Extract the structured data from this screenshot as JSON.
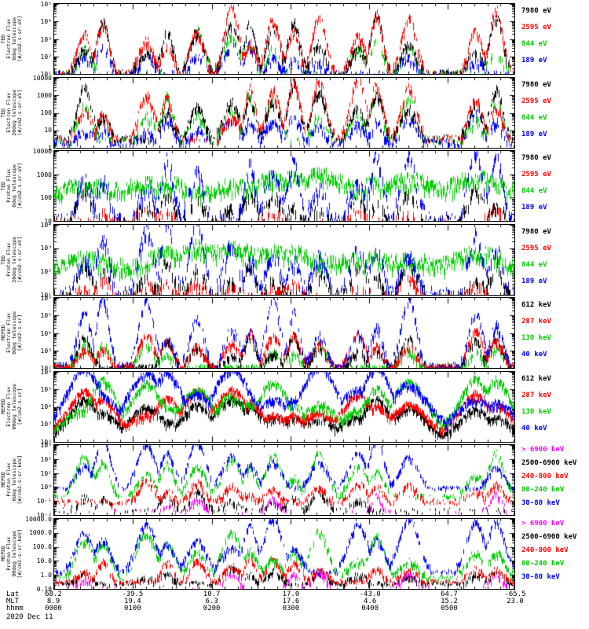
{
  "figure": {
    "background": "#ffffff",
    "date_label": "2020 Dec 11",
    "colors": {
      "black": "#000000",
      "red": "#ff0000",
      "green": "#00cc00",
      "blue": "#0000ff",
      "magenta": "#ff00ff"
    },
    "bottom_axis": {
      "row_labels": [
        "Lat",
        "MLT",
        "hhmm"
      ],
      "ticks": [
        {
          "frac": 0.0,
          "lat": "68.2",
          "mlt": "8.9",
          "hhmm": "0000"
        },
        {
          "frac": 0.1714,
          "lat": "-39.5",
          "mlt": "19.4",
          "hhmm": "0100"
        },
        {
          "frac": 0.3429,
          "lat": "10.7",
          "mlt": "6.3",
          "hhmm": "0200"
        },
        {
          "frac": 0.5143,
          "lat": "17.0",
          "mlt": "17.6",
          "hhmm": "0300"
        },
        {
          "frac": 0.6857,
          "lat": "-43.0",
          "mlt": "4.6",
          "hhmm": "0400"
        },
        {
          "frac": 0.8571,
          "lat": "64.7",
          "mlt": "15.2",
          "hhmm": "0500"
        },
        {
          "frac": 1.0,
          "lat": "-65.5",
          "mlt": "23.0",
          "hhmm": ""
        }
      ]
    },
    "bursts": [
      {
        "c": 0.065,
        "w": 0.015
      },
      {
        "c": 0.105,
        "w": 0.013
      },
      {
        "c": 0.2,
        "w": 0.016
      },
      {
        "c": 0.245,
        "w": 0.013
      },
      {
        "c": 0.31,
        "w": 0.015
      },
      {
        "c": 0.385,
        "w": 0.016
      },
      {
        "c": 0.425,
        "w": 0.012
      },
      {
        "c": 0.475,
        "w": 0.015
      },
      {
        "c": 0.52,
        "w": 0.013
      },
      {
        "c": 0.575,
        "w": 0.015
      },
      {
        "c": 0.66,
        "w": 0.016
      },
      {
        "c": 0.7,
        "w": 0.013
      },
      {
        "c": 0.77,
        "w": 0.016
      },
      {
        "c": 0.915,
        "w": 0.015
      },
      {
        "c": 0.96,
        "w": 0.014
      }
    ]
  },
  "chart_data": [
    {
      "type": "line",
      "y_scale": "log",
      "ylabel": "TED\nElectron Flux\n0deg telescope\n[#/cm2-s-sr-eV]",
      "ylim_log10": [
        1,
        5
      ],
      "yticks": [
        {
          "log": 5,
          "label": "10⁵"
        },
        {
          "log": 4,
          "label": "10⁴"
        },
        {
          "log": 3,
          "label": "10³"
        },
        {
          "log": 2,
          "label": "10²"
        },
        {
          "log": 1,
          "label": "10¹"
        }
      ],
      "energy_labels": [
        {
          "text": "7980 eV",
          "color": "black"
        },
        {
          "text": "2595 eV",
          "color": "red"
        },
        {
          "text": "844 eV",
          "color": "green"
        },
        {
          "text": "189 eV",
          "color": "blue"
        }
      ],
      "series": [
        {
          "label": "189 eV",
          "color": "blue",
          "base": 1.05,
          "amp": 1.35,
          "noise": 0.5,
          "gap": 0.35,
          "sparse": 0.5,
          "presence": 0.9,
          "wmul": 1
        },
        {
          "label": "844 eV",
          "color": "green",
          "base": 1.05,
          "amp": 1.9,
          "noise": 0.6,
          "gap": 0.5,
          "sparse": 0.22,
          "presence": 0.85,
          "wmul": 1
        },
        {
          "label": "7980 eV",
          "color": "black",
          "base": 1.1,
          "amp": 2.6,
          "noise": 0.5,
          "gap": 0.25,
          "sparse": 0.55,
          "presence": 0.95,
          "wmul": 1
        },
        {
          "label": "2595 eV",
          "color": "red",
          "base": 1.1,
          "amp": 2.95,
          "noise": 0.5,
          "gap": 0.22,
          "sparse": 0.3,
          "presence": 0.95,
          "wmul": 1
        }
      ]
    },
    {
      "type": "line",
      "y_scale": "log",
      "ylabel": "TED\nElectron Flux\n30deg telescope\n[#/cm2-s-sr-eV]",
      "ylim_log10": [
        0,
        4
      ],
      "yticks": [
        {
          "log": 4,
          "label": "10000"
        },
        {
          "log": 3,
          "label": "1000"
        },
        {
          "log": 2,
          "label": "100"
        },
        {
          "log": 1,
          "label": "10"
        },
        {
          "log": 0,
          "label": "1"
        }
      ],
      "energy_labels": [
        {
          "text": "7980 eV",
          "color": "black"
        },
        {
          "text": "2595 eV",
          "color": "red"
        },
        {
          "text": "844 eV",
          "color": "green"
        },
        {
          "text": "189 eV",
          "color": "blue"
        }
      ],
      "series": [
        {
          "label": "189 eV",
          "color": "blue",
          "base": 0.35,
          "amp": 1.3,
          "noise": 0.5,
          "gap": 0.35,
          "sparse": 0.5,
          "presence": 0.9,
          "wmul": 1
        },
        {
          "label": "844 eV",
          "color": "green",
          "base": 0.5,
          "amp": 2.0,
          "noise": 0.6,
          "gap": 0.45,
          "sparse": 0.25,
          "presence": 0.85,
          "wmul": 1
        },
        {
          "label": "7980 eV",
          "color": "black",
          "base": 0.6,
          "amp": 2.5,
          "noise": 0.5,
          "gap": 0.25,
          "sparse": 0.5,
          "presence": 0.95,
          "wmul": 1
        },
        {
          "label": "2595 eV",
          "color": "red",
          "base": 0.6,
          "amp": 2.8,
          "noise": 0.5,
          "gap": 0.22,
          "sparse": 0.3,
          "presence": 0.95,
          "wmul": 1
        }
      ]
    },
    {
      "type": "line",
      "y_scale": "log",
      "ylabel": "TED\nProton Flux\n0deg telescope\n[#/cm2-s-sr-eV]",
      "ylim_log10": [
        1,
        4
      ],
      "yticks": [
        {
          "log": 4,
          "label": "10000"
        },
        {
          "log": 3,
          "label": "1000"
        },
        {
          "log": 2,
          "label": "100"
        },
        {
          "log": 1,
          "label": "10"
        }
      ],
      "energy_labels": [
        {
          "text": "7980 eV",
          "color": "black"
        },
        {
          "text": "2595 eV",
          "color": "red"
        },
        {
          "text": "844 eV",
          "color": "green"
        },
        {
          "text": "189 eV",
          "color": "blue"
        }
      ],
      "series": [
        {
          "label": "7980 eV",
          "color": "black",
          "base": 1.1,
          "amp": 1.1,
          "noise": 0.45,
          "gap": 0.5,
          "sparse": 0.35,
          "presence": 0.8,
          "wmul": 1
        },
        {
          "label": "2595 eV",
          "color": "red",
          "base": 1.05,
          "amp": 0.6,
          "noise": 0.35,
          "gap": 0.6,
          "sparse": 0.12,
          "presence": 0.6,
          "wmul": 1
        },
        {
          "label": "844 eV",
          "color": "green",
          "base": 1.85,
          "amp": 1.0,
          "noise": 0.6,
          "gap": 0.12,
          "sparse": 0.45,
          "presence": 1.0,
          "wmul": 4
        },
        {
          "label": "189 eV",
          "color": "blue",
          "base": 1.2,
          "amp": 2.4,
          "noise": 0.6,
          "gap": 0.35,
          "sparse": 0.3,
          "presence": 0.9,
          "wmul": 1
        }
      ]
    },
    {
      "type": "line",
      "y_scale": "log",
      "ylabel": "TED\nProton Flux\n30deg telescope\n[#/cm2-s-sr-eV]",
      "ylim_log10": [
        1,
        4
      ],
      "yticks": [
        {
          "log": 4,
          "label": "10⁴"
        },
        {
          "log": 3,
          "label": "10³"
        },
        {
          "log": 2,
          "label": "10²"
        },
        {
          "log": 1,
          "label": "10¹"
        }
      ],
      "energy_labels": [
        {
          "text": "7980 eV",
          "color": "black"
        },
        {
          "text": "2595 eV",
          "color": "red"
        },
        {
          "text": "844 eV",
          "color": "green"
        },
        {
          "text": "189 eV",
          "color": "blue"
        }
      ],
      "series": [
        {
          "label": "7980 eV",
          "color": "black",
          "base": 1.1,
          "amp": 1.1,
          "noise": 0.45,
          "gap": 0.5,
          "sparse": 0.35,
          "presence": 0.8,
          "wmul": 1
        },
        {
          "label": "2595 eV",
          "color": "red",
          "base": 1.05,
          "amp": 0.6,
          "noise": 0.35,
          "gap": 0.6,
          "sparse": 0.12,
          "presence": 0.6,
          "wmul": 1
        },
        {
          "label": "844 eV",
          "color": "green",
          "base": 1.85,
          "amp": 1.0,
          "noise": 0.6,
          "gap": 0.12,
          "sparse": 0.45,
          "presence": 1.0,
          "wmul": 4
        },
        {
          "label": "189 eV",
          "color": "blue",
          "base": 1.2,
          "amp": 2.4,
          "noise": 0.6,
          "gap": 0.35,
          "sparse": 0.3,
          "presence": 0.9,
          "wmul": 1
        }
      ]
    },
    {
      "type": "line",
      "y_scale": "log",
      "ylabel": "MEPED\nElectron Flux\n0deg telescope\n[#/cm2-s-sr]",
      "ylim_log10": [
        2,
        6
      ],
      "yticks": [
        {
          "log": 6,
          "label": "10⁶"
        },
        {
          "log": 5,
          "label": "10⁵"
        },
        {
          "log": 4,
          "label": "10⁴"
        },
        {
          "log": 3,
          "label": "10³"
        },
        {
          "log": 2,
          "label": "10²"
        }
      ],
      "energy_labels": [
        {
          "text": "612 keV",
          "color": "black"
        },
        {
          "text": "287 keV",
          "color": "red"
        },
        {
          "text": "130 keV",
          "color": "green"
        },
        {
          "text": "40 keV",
          "color": "blue"
        }
      ],
      "series": [
        {
          "label": "130 keV",
          "color": "green",
          "base": 2.1,
          "amp": 1.3,
          "noise": 0.35,
          "gap": 0.4,
          "sparse": 0.7,
          "presence": 0.75,
          "wmul": 1
        },
        {
          "label": "612 keV",
          "color": "black",
          "base": 2.1,
          "amp": 1.6,
          "noise": 0.35,
          "gap": 0.3,
          "sparse": 0.85,
          "presence": 0.85,
          "wmul": 1
        },
        {
          "label": "287 keV",
          "color": "red",
          "base": 2.15,
          "amp": 1.7,
          "noise": 0.35,
          "gap": 0.3,
          "sparse": 0.85,
          "presence": 0.85,
          "wmul": 1
        },
        {
          "label": "40 keV",
          "color": "blue",
          "base": 2.2,
          "amp": 3.1,
          "noise": 0.5,
          "gap": 0.3,
          "sparse": 0.6,
          "presence": 0.9,
          "wmul": 1
        }
      ]
    },
    {
      "type": "line",
      "y_scale": "log",
      "ylabel": "MEPED\nElectron Flux\n90deg telescope\n[#/cm2-s-sr]",
      "ylim_log10": [
        2,
        6
      ],
      "yticks": [
        {
          "log": 6,
          "label": "10⁶"
        },
        {
          "log": 5,
          "label": "10⁵"
        },
        {
          "log": 4,
          "label": "10⁴"
        },
        {
          "log": 3,
          "label": "10³"
        },
        {
          "log": 2,
          "label": "10²"
        }
      ],
      "energy_labels": [
        {
          "text": "612 keV",
          "color": "black"
        },
        {
          "text": "287 keV",
          "color": "red"
        },
        {
          "text": "130 keV",
          "color": "green"
        },
        {
          "text": "40 keV",
          "color": "blue"
        }
      ],
      "series": [
        {
          "label": "612 keV",
          "color": "black",
          "base": 2.4,
          "amp": 1.7,
          "noise": 0.3,
          "gap": 0.08,
          "sparse": 0.9,
          "presence": 1,
          "wmul": 2.2
        },
        {
          "label": "287 keV",
          "color": "red",
          "base": 2.6,
          "amp": 1.9,
          "noise": 0.3,
          "gap": 0.08,
          "sparse": 0.9,
          "presence": 1,
          "wmul": 2.2
        },
        {
          "label": "130 keV",
          "color": "green",
          "base": 2.8,
          "amp": 2.2,
          "noise": 0.35,
          "gap": 0.08,
          "sparse": 0.8,
          "presence": 1,
          "wmul": 2.2
        },
        {
          "label": "40 keV",
          "color": "blue",
          "base": 3.0,
          "amp": 2.7,
          "noise": 0.35,
          "gap": 0.05,
          "sparse": 0.7,
          "presence": 1,
          "wmul": 2.4
        }
      ]
    },
    {
      "type": "line",
      "y_scale": "log",
      "ylabel": "MEPED\nProton Flux\n0deg telescope\n[#/cm2-s-sr-keV]",
      "ylim_log10": [
        -2,
        3
      ],
      "yticks": [
        {
          "log": 3,
          "label": "10³"
        },
        {
          "log": 2,
          "label": "10²"
        },
        {
          "log": 1,
          "label": "10¹"
        },
        {
          "log": 0,
          "label": "10⁰"
        },
        {
          "log": -1,
          "label": "10⁻¹"
        },
        {
          "log": -2,
          "label": "10⁻²"
        }
      ],
      "energy_labels": [
        {
          "text": "> 6900 keV",
          "color": "magenta"
        },
        {
          "text": "2500-6900 keV",
          "color": "black"
        },
        {
          "text": "240-800 keV",
          "color": "red"
        },
        {
          "text": "80-240 keV",
          "color": "green"
        },
        {
          "text": "30-80 keV",
          "color": "blue"
        }
      ],
      "series": [
        {
          "label": "2500-6900 keV",
          "color": "black",
          "base": -1.6,
          "amp": 1.2,
          "noise": 0.4,
          "gap": 0.5,
          "sparse": 0.2,
          "presence": 0.6,
          "wmul": 1
        },
        {
          "label": "240-800 keV",
          "color": "red",
          "base": -1.0,
          "amp": 1.2,
          "noise": 0.5,
          "gap": 0.3,
          "sparse": 0.45,
          "presence": 0.8,
          "wmul": 1
        },
        {
          "label": "80-240 keV",
          "color": "green",
          "base": -0.6,
          "amp": 2.4,
          "noise": 0.45,
          "gap": 0.3,
          "sparse": 0.3,
          "presence": 0.85,
          "wmul": 1.2
        },
        {
          "label": "30-80 keV",
          "color": "blue",
          "base": 0.0,
          "amp": 2.9,
          "noise": 0.3,
          "gap": 0.3,
          "sparse": 0.55,
          "presence": 0.85,
          "wmul": 1.2
        },
        {
          "label": "> 6900 keV",
          "color": "magenta",
          "base": -1.7,
          "amp": 1.0,
          "noise": 0.4,
          "gap": 0.4,
          "sparse": 0.04,
          "presence": 0.3,
          "wmul": 0.8
        }
      ]
    },
    {
      "type": "line",
      "y_scale": "log",
      "ylabel": "MEPED\nProton Flux\n90deg telescope\n[#/cm2-s-sr-keV]",
      "ylim_log10": [
        -1,
        4
      ],
      "yticks": [
        {
          "log": 4,
          "label": "10000.0"
        },
        {
          "log": 3,
          "label": "1000.0"
        },
        {
          "log": 2,
          "label": "100.0"
        },
        {
          "log": 1,
          "label": "10.0"
        },
        {
          "log": 0,
          "label": "1.0"
        },
        {
          "log": -1,
          "label": "0.10"
        }
      ],
      "energy_labels": [
        {
          "text": "> 6900 keV",
          "color": "magenta"
        },
        {
          "text": "2500-6900 keV",
          "color": "black"
        },
        {
          "text": "240-800 keV",
          "color": "red"
        },
        {
          "text": "80-240 keV",
          "color": "green"
        },
        {
          "text": "30-80 keV",
          "color": "blue"
        }
      ],
      "series": [
        {
          "label": "2500-6900 keV",
          "color": "black",
          "base": -0.55,
          "amp": 1.0,
          "noise": 0.35,
          "gap": 0.4,
          "sparse": 0.45,
          "presence": 0.7,
          "wmul": 1
        },
        {
          "label": "240-800 keV",
          "color": "red",
          "base": -0.4,
          "amp": 1.5,
          "noise": 0.4,
          "gap": 0.3,
          "sparse": 0.6,
          "presence": 0.85,
          "wmul": 1
        },
        {
          "label": "80-240 keV",
          "color": "green",
          "base": -0.15,
          "amp": 2.6,
          "noise": 0.45,
          "gap": 0.25,
          "sparse": 0.4,
          "presence": 0.9,
          "wmul": 1.3
        },
        {
          "label": "30-80 keV",
          "color": "blue",
          "base": 0.3,
          "amp": 3.2,
          "noise": 0.4,
          "gap": 0.2,
          "sparse": 0.5,
          "presence": 0.95,
          "wmul": 1.3
        },
        {
          "label": "> 6900 keV",
          "color": "magenta",
          "base": -0.8,
          "amp": 0.9,
          "noise": 0.35,
          "gap": 0.4,
          "sparse": 0.04,
          "presence": 0.3,
          "wmul": 0.8
        }
      ]
    }
  ]
}
